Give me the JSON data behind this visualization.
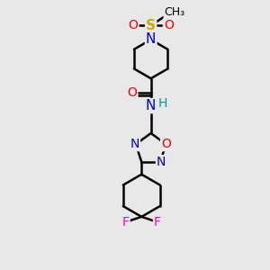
{
  "bg_color": "#e8e8e8",
  "atom_colors": {
    "N": "#0000ee",
    "O": "#ff0000",
    "S": "#ccaa00",
    "F": "#ff00cc",
    "C": "#000000",
    "H": "#009999"
  },
  "bond_color": "#000000",
  "bond_width": 1.8,
  "figsize": [
    3.0,
    3.0
  ],
  "dpi": 100
}
